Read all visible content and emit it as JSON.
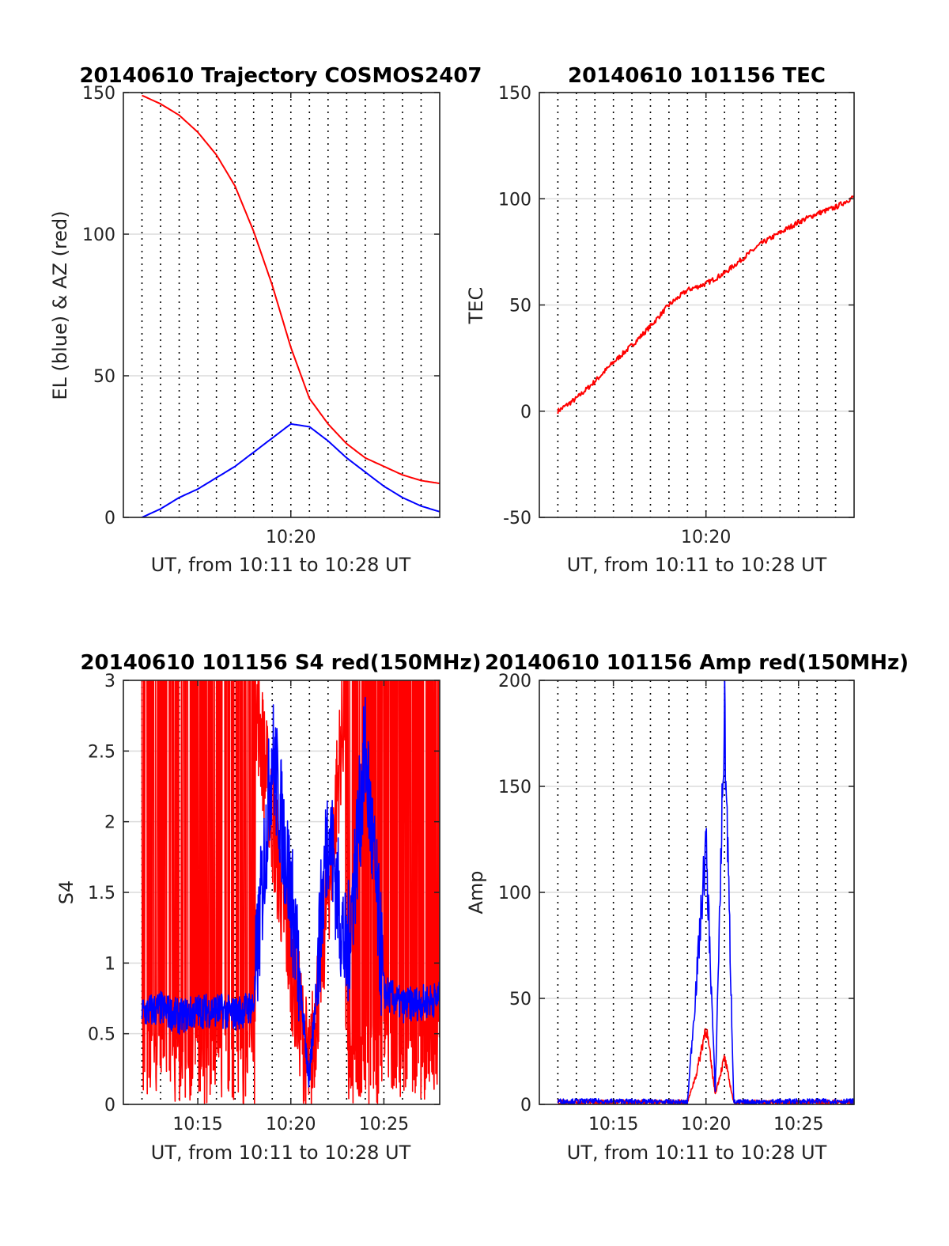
{
  "colors": {
    "el": "#0000ff",
    "az": "#ff0000",
    "tec": "#ff0000",
    "red_series": "#ff0000",
    "blue_series": "#0000ff"
  },
  "chart_data": [
    {
      "type": "line",
      "title": "20140610 Trajectory COSMOS2407",
      "xlabel": "UT, from 10:11 to 10:28 UT",
      "ylabel": "EL (blue) & AZ (red)",
      "xlim": [
        "10:11",
        "10:28"
      ],
      "ylim": [
        0,
        150
      ],
      "yticks": [
        0,
        50,
        100,
        150
      ],
      "xticks": [
        "10:20"
      ],
      "grid": true,
      "series": [
        {
          "color": "red",
          "x": [
            "10:12",
            "10:13",
            "10:14",
            "10:15",
            "10:16",
            "10:17",
            "10:18",
            "10:19",
            "10:20",
            "10:21",
            "10:22",
            "10:23",
            "10:24",
            "10:25",
            "10:26",
            "10:27",
            "10:28"
          ],
          "values": [
            149,
            146,
            142,
            136,
            128,
            117,
            101,
            82,
            60,
            42,
            33,
            26,
            21,
            18,
            15,
            13,
            12
          ]
        },
        {
          "color": "blue",
          "x": [
            "10:12",
            "10:13",
            "10:14",
            "10:15",
            "10:16",
            "10:17",
            "10:18",
            "10:19",
            "10:20",
            "10:21",
            "10:22",
            "10:23",
            "10:24",
            "10:25",
            "10:26",
            "10:27",
            "10:28"
          ],
          "values": [
            0,
            3,
            7,
            10,
            14,
            18,
            23,
            28,
            33,
            32,
            27,
            21,
            16,
            11,
            7,
            4,
            2
          ]
        }
      ]
    },
    {
      "type": "line",
      "title": "20140610 101156 TEC",
      "xlabel": "UT, from 10:11 to 10:28 UT",
      "ylabel": "TEC",
      "xlim": [
        "10:11",
        "10:28"
      ],
      "ylim": [
        -50,
        150
      ],
      "yticks": [
        -50,
        0,
        50,
        100,
        150
      ],
      "xticks": [
        "10:20"
      ],
      "grid": true,
      "series": [
        {
          "color": "red",
          "x": [
            "10:12",
            "10:13",
            "10:14",
            "10:15",
            "10:16",
            "10:17",
            "10:18",
            "10:19",
            "10:20",
            "10:21",
            "10:22",
            "10:23",
            "10:24",
            "10:25",
            "10:26",
            "10:27",
            "10:28"
          ],
          "values": [
            0,
            6,
            14,
            23,
            31,
            40,
            50,
            57,
            60,
            65,
            72,
            79,
            84,
            89,
            93,
            96,
            101
          ]
        }
      ]
    },
    {
      "type": "line",
      "title": "20140610 101156 S4 red(150MHz)",
      "xlabel": "UT, from 10:11 to 10:28 UT",
      "ylabel": "S4",
      "xlim": [
        "10:11",
        "10:28"
      ],
      "ylim": [
        0,
        3
      ],
      "yticks": [
        0,
        0.5,
        1,
        1.5,
        2,
        2.5,
        3
      ],
      "xticks": [
        "10:15",
        "10:20",
        "10:25"
      ],
      "grid": true,
      "series": [
        {
          "color": "red",
          "x": [
            "10:12",
            "10:13",
            "10:14",
            "10:15",
            "10:16",
            "10:17",
            "10:18",
            "10:19",
            "10:20",
            "10:21",
            "10:22",
            "10:23",
            "10:24",
            "10:25",
            "10:26",
            "10:27",
            "10:28"
          ],
          "values": [
            3,
            3,
            3,
            3,
            3,
            3,
            3,
            2.0,
            1.0,
            0.2,
            1.5,
            3,
            3,
            3,
            3,
            3,
            3
          ]
        },
        {
          "color": "blue",
          "x": [
            "10:12",
            "10:13",
            "10:14",
            "10:15",
            "10:16",
            "10:17",
            "10:18",
            "10:19",
            "10:20",
            "10:21",
            "10:22",
            "10:23",
            "10:24",
            "10:25",
            "10:26",
            "10:27",
            "10:28"
          ],
          "values": [
            0.65,
            0.68,
            0.62,
            0.66,
            0.67,
            0.64,
            0.7,
            2.5,
            1.5,
            0.15,
            2.0,
            1.0,
            2.5,
            0.8,
            0.7,
            0.72,
            0.75
          ]
        }
      ]
    },
    {
      "type": "line",
      "title": "20140610 101156 Amp red(150MHz)",
      "xlabel": "UT, from 10:11 to 10:28 UT",
      "ylabel": "Amp",
      "xlim": [
        "10:11",
        "10:28"
      ],
      "ylim": [
        0,
        200
      ],
      "yticks": [
        0,
        50,
        100,
        150,
        200
      ],
      "xticks": [
        "10:15",
        "10:20",
        "10:25"
      ],
      "grid": true,
      "series": [
        {
          "color": "red",
          "x": [
            "10:12",
            "10:15",
            "10:19",
            "10:19.5",
            "10:20",
            "10:20.5",
            "10:21",
            "10:21.5",
            "10:25",
            "10:28"
          ],
          "values": [
            1,
            1,
            1,
            15,
            37,
            5,
            22,
            1,
            1,
            1
          ]
        },
        {
          "color": "blue",
          "x": [
            "10:12",
            "10:15",
            "10:19",
            "10:19.5",
            "10:20",
            "10:20.5",
            "10:21",
            "10:21.5",
            "10:25",
            "10:28"
          ],
          "values": [
            1.5,
            1.5,
            1,
            60,
            123,
            5,
            185,
            1,
            1.5,
            1.5
          ]
        }
      ]
    }
  ]
}
